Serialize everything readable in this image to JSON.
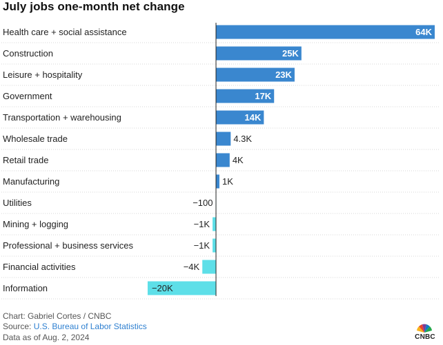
{
  "title": "July jobs one-month net change",
  "chart_data": {
    "type": "bar",
    "orientation": "horizontal",
    "title": "July jobs one-month net change",
    "categories": [
      "Health care + social assistance",
      "Construction",
      "Leisure + hospitality",
      "Government",
      "Transportation + warehousing",
      "Wholesale trade",
      "Retail trade",
      "Manufacturing",
      "Utilities",
      "Mining + logging",
      "Professional + business services",
      "Financial activities",
      "Information"
    ],
    "values": [
      64000,
      25000,
      23000,
      17000,
      14000,
      4300,
      4000,
      1000,
      -100,
      -1000,
      -1000,
      -4000,
      -20000
    ],
    "value_labels": [
      "64K",
      "25K",
      "23K",
      "17K",
      "14K",
      "4.3K",
      "4K",
      "1K",
      "−100",
      "−1K",
      "−1K",
      "−4K",
      "−20K"
    ],
    "xlim": [
      -20800,
      64000
    ],
    "grid": false,
    "colors": {
      "positive": "#3a87cf",
      "negative": "#5ddfe8"
    }
  },
  "footer": {
    "chart_credit": "Chart: Gabriel Cortes / CNBC",
    "source_prefix": "Source: ",
    "source_name": "U.S. Bureau of Labor Statistics",
    "date_note": "Data as of Aug. 2, 2024"
  },
  "logo": {
    "text": "CNBC",
    "icon": "cnbc-peacock-icon"
  }
}
